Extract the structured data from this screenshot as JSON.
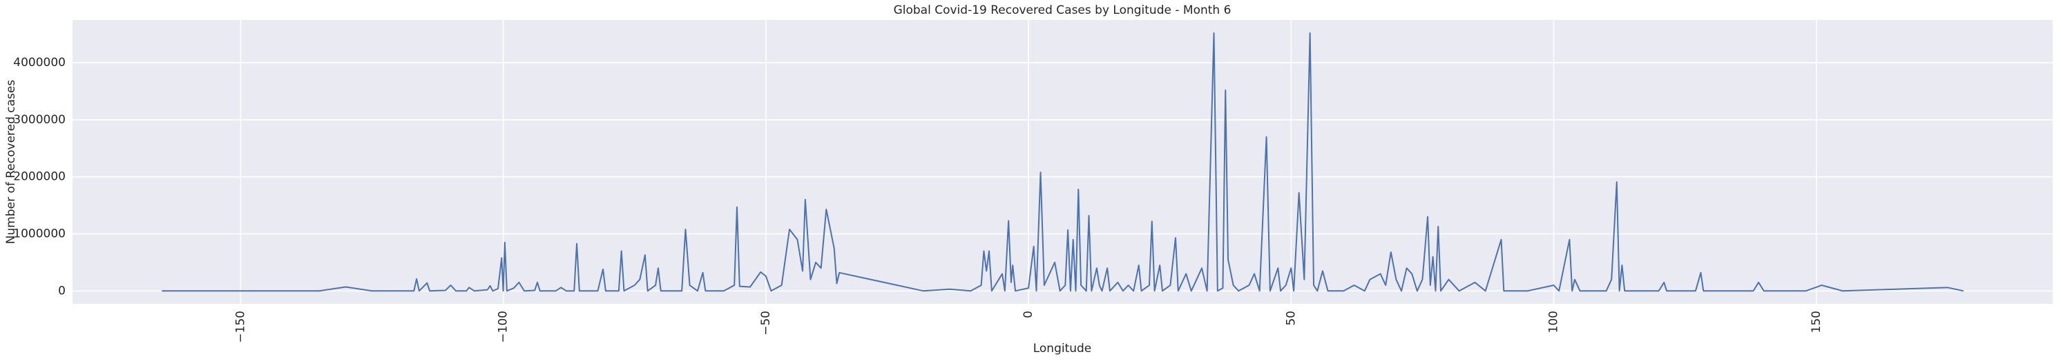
{
  "chart_data": {
    "type": "line",
    "title": "Global Covid-19 Recovered Cases by Longitude - Month 6",
    "x_label": "Longitude",
    "y_label": "Number of Recovered cases",
    "color": "#4c72b0",
    "grid": true,
    "xlim": [
      -182,
      195
    ],
    "ylim": [
      -226000,
      4750000
    ],
    "xticks": [
      {
        "value": -150,
        "label": "−150"
      },
      {
        "value": -100,
        "label": "−100"
      },
      {
        "value": -50,
        "label": "−50"
      },
      0,
      50,
      100,
      150
    ],
    "yticks": [
      0,
      1000000,
      2000000,
      3000000,
      4000000
    ],
    "x": [
      -165,
      -135,
      -130,
      -125,
      -117,
      -116.5,
      -116,
      -114.5,
      -114,
      -111,
      -110,
      -109,
      -107,
      -106.5,
      -105.5,
      -103,
      -102.5,
      -102,
      -101,
      -100.3,
      -100,
      -99.7,
      -99.3,
      -98,
      -97,
      -96,
      -94,
      -93.5,
      -93,
      -90,
      -89,
      -88,
      -86.5,
      -86,
      -85.5,
      -82,
      -81,
      -80.5,
      -78,
      -77.5,
      -77,
      -75,
      -74,
      -73,
      -72.5,
      -71,
      -70.5,
      -70,
      -66,
      -65.3,
      -64.5,
      -63,
      -62,
      -61.5,
      -58,
      -56,
      -55.5,
      -55,
      -53,
      -51,
      -50,
      -49,
      -47,
      -45.5,
      -44,
      -43,
      -42.5,
      -41.5,
      -40.5,
      -39.5,
      -38.5,
      -37,
      -36.5,
      -36,
      -20,
      -15,
      -11,
      -9,
      -8.5,
      -8,
      -7.5,
      -7,
      -5,
      -4.5,
      -3.8,
      -3.3,
      -3,
      -2.5,
      0,
      1,
      1.5,
      2.3,
      3,
      5,
      6,
      7,
      7.5,
      8,
      8.5,
      9,
      9.5,
      10,
      11,
      11.5,
      12,
      13,
      13.5,
      14,
      15,
      15.5,
      17,
      18,
      19,
      20,
      21,
      21.5,
      23,
      23.5,
      24,
      25,
      25.5,
      27,
      28,
      28.5,
      30,
      31,
      33,
      34,
      35.3,
      36,
      37,
      37.5,
      38,
      39,
      40,
      42,
      43,
      44,
      45.3,
      46,
      47.5,
      48,
      49,
      50,
      50.5,
      51.5,
      52.5,
      53.6,
      54.3,
      55,
      56,
      57,
      60,
      62,
      64,
      65,
      67,
      68,
      69,
      70,
      71,
      72,
      73,
      74,
      75,
      76,
      76.5,
      77,
      77.5,
      78,
      78.5,
      80,
      82,
      85,
      87,
      90,
      90.5,
      95,
      100,
      101,
      103,
      103.5,
      104,
      105,
      110,
      111,
      112,
      112.5,
      113,
      113.5,
      120,
      121,
      121.5,
      127,
      128,
      128.5,
      138,
      139,
      140,
      148,
      151,
      155,
      175,
      178
    ],
    "values": [
      0,
      0,
      70000,
      0,
      0,
      210000,
      0,
      140000,
      0,
      10000,
      100000,
      0,
      0,
      60000,
      0,
      20000,
      90000,
      0,
      40000,
      580000,
      0,
      850000,
      0,
      50000,
      150000,
      0,
      10000,
      150000,
      0,
      0,
      60000,
      0,
      0,
      830000,
      0,
      0,
      380000,
      0,
      0,
      700000,
      0,
      100000,
      200000,
      630000,
      0,
      100000,
      400000,
      0,
      0,
      1080000,
      100000,
      0,
      320000,
      0,
      0,
      100000,
      1470000,
      80000,
      70000,
      330000,
      260000,
      0,
      100000,
      1080000,
      900000,
      350000,
      1600000,
      200000,
      500000,
      400000,
      1430000,
      750000,
      130000,
      320000,
      0,
      30000,
      0,
      100000,
      700000,
      350000,
      700000,
      0,
      300000,
      0,
      1230000,
      150000,
      450000,
      0,
      50000,
      780000,
      0,
      2080000,
      100000,
      500000,
      0,
      100000,
      1070000,
      0,
      900000,
      0,
      1780000,
      100000,
      0,
      1320000,
      0,
      400000,
      100000,
      0,
      400000,
      0,
      150000,
      0,
      100000,
      0,
      450000,
      0,
      100000,
      1220000,
      0,
      450000,
      0,
      100000,
      930000,
      0,
      300000,
      0,
      400000,
      0,
      4520000,
      0,
      50000,
      3520000,
      550000,
      100000,
      0,
      100000,
      300000,
      0,
      2700000,
      0,
      400000,
      0,
      100000,
      400000,
      0,
      1720000,
      200000,
      4520000,
      100000,
      0,
      350000,
      0,
      0,
      100000,
      0,
      200000,
      300000,
      100000,
      680000,
      200000,
      0,
      400000,
      300000,
      0,
      200000,
      1300000,
      100000,
      600000,
      0,
      1130000,
      0,
      200000,
      0,
      150000,
      0,
      900000,
      0,
      0,
      100000,
      0,
      900000,
      0,
      200000,
      0,
      0,
      200000,
      1910000,
      0,
      450000,
      0,
      0,
      150000,
      0,
      0,
      320000,
      0,
      0,
      150000,
      0,
      0,
      100000,
      0,
      60000,
      0
    ]
  }
}
